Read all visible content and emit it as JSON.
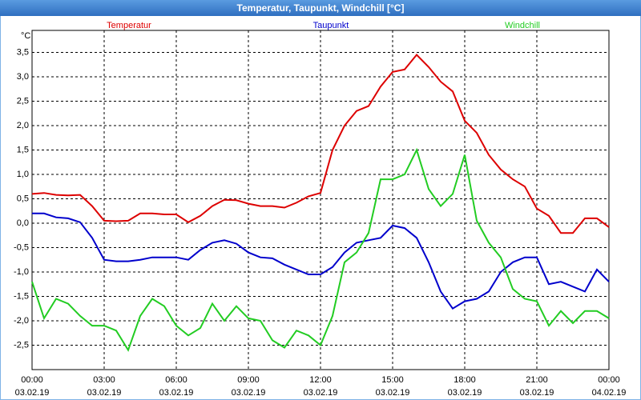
{
  "chart_data": {
    "type": "line",
    "title": "Temperatur, Taupunkt, Windchill [°C]",
    "y_unit": "°C",
    "x": [
      0,
      0.5,
      1,
      1.5,
      2,
      2.5,
      3,
      3.5,
      4,
      4.5,
      5,
      5.5,
      6,
      6.5,
      7,
      7.5,
      8,
      8.5,
      9,
      9.5,
      10,
      10.5,
      11,
      11.5,
      12,
      12.5,
      13,
      13.5,
      14,
      14.5,
      15,
      15.5,
      16,
      16.5,
      17,
      17.5,
      18,
      18.5,
      19,
      19.5,
      20,
      20.5,
      21,
      21.5,
      22,
      22.5,
      23,
      23.5,
      24
    ],
    "series": [
      {
        "name": "Temperatur",
        "color": "#dd0000",
        "values": [
          0.6,
          0.62,
          0.58,
          0.57,
          0.58,
          0.35,
          0.05,
          0.04,
          0.05,
          0.2,
          0.2,
          0.18,
          0.18,
          0.02,
          0.15,
          0.35,
          0.48,
          0.47,
          0.4,
          0.35,
          0.35,
          0.32,
          0.42,
          0.55,
          0.62,
          1.5,
          2.0,
          2.3,
          2.4,
          2.8,
          3.1,
          3.15,
          3.45,
          3.2,
          2.9,
          2.7,
          2.1,
          1.85,
          1.4,
          1.1,
          0.9,
          0.75,
          0.3,
          0.15,
          -0.2,
          -0.2,
          0.1,
          0.1,
          -0.08
        ]
      },
      {
        "name": "Taupunkt",
        "color": "#0000cc",
        "values": [
          0.2,
          0.2,
          0.12,
          0.1,
          0.02,
          -0.3,
          -0.75,
          -0.78,
          -0.78,
          -0.75,
          -0.7,
          -0.7,
          -0.7,
          -0.75,
          -0.55,
          -0.4,
          -0.35,
          -0.42,
          -0.6,
          -0.7,
          -0.72,
          -0.85,
          -0.95,
          -1.05,
          -1.05,
          -0.9,
          -0.6,
          -0.4,
          -0.35,
          -0.3,
          -0.05,
          -0.1,
          -0.3,
          -0.8,
          -1.4,
          -1.75,
          -1.6,
          -1.55,
          -1.4,
          -1.0,
          -0.8,
          -0.7,
          -0.7,
          -1.25,
          -1.2,
          -1.3,
          -1.4,
          -0.95,
          -1.2
        ]
      },
      {
        "name": "Windchill",
        "color": "#22cc22",
        "values": [
          -1.2,
          -1.95,
          -1.55,
          -1.65,
          -1.9,
          -2.1,
          -2.1,
          -2.2,
          -2.6,
          -1.9,
          -1.55,
          -1.7,
          -2.1,
          -2.3,
          -2.15,
          -1.65,
          -2.0,
          -1.7,
          -1.95,
          -2.0,
          -2.4,
          -2.55,
          -2.2,
          -2.3,
          -2.5,
          -1.9,
          -0.8,
          -0.6,
          -0.2,
          0.9,
          0.9,
          1.0,
          1.5,
          0.7,
          0.35,
          0.6,
          1.4,
          0.05,
          -0.4,
          -0.7,
          -1.35,
          -1.55,
          -1.6,
          -2.1,
          -1.8,
          -2.05,
          -1.8,
          -1.8,
          -1.95
        ]
      }
    ],
    "xlim": [
      0,
      24
    ],
    "xticks": [
      {
        "value": 0,
        "label": "00:00"
      },
      {
        "value": 3,
        "label": "03:00"
      },
      {
        "value": 6,
        "label": "06:00"
      },
      {
        "value": 9,
        "label": "09:00"
      },
      {
        "value": 12,
        "label": "12:00"
      },
      {
        "value": 15,
        "label": "15:00"
      },
      {
        "value": 18,
        "label": "18:00"
      },
      {
        "value": 21,
        "label": "21:00"
      },
      {
        "value": 24,
        "label": "00:00"
      }
    ],
    "xtick_dates": [
      "03.02.19",
      "03.02.19",
      "03.02.19",
      "03.02.19",
      "03.02.19",
      "03.02.19",
      "03.02.19",
      "03.02.19",
      "04.02.19"
    ],
    "ylim": [
      -3.0,
      3.95
    ],
    "yticks": [
      {
        "value": 3.5,
        "label": "3,5"
      },
      {
        "value": 3,
        "label": "3,0"
      },
      {
        "value": 2.5,
        "label": "2,5"
      },
      {
        "value": 2,
        "label": "2,0"
      },
      {
        "value": 1.5,
        "label": "1,5"
      },
      {
        "value": 1,
        "label": "1,0"
      },
      {
        "value": 0.5,
        "label": "0,5"
      },
      {
        "value": 0,
        "label": "0,0"
      },
      {
        "value": -0.5,
        "label": "-0,5"
      },
      {
        "value": -1,
        "label": "-1,0"
      },
      {
        "value": -1.5,
        "label": "-1,5"
      },
      {
        "value": -2,
        "label": "-2,0"
      },
      {
        "value": -2.5,
        "label": "-2,5"
      }
    ],
    "grid": true,
    "legend": "top"
  }
}
